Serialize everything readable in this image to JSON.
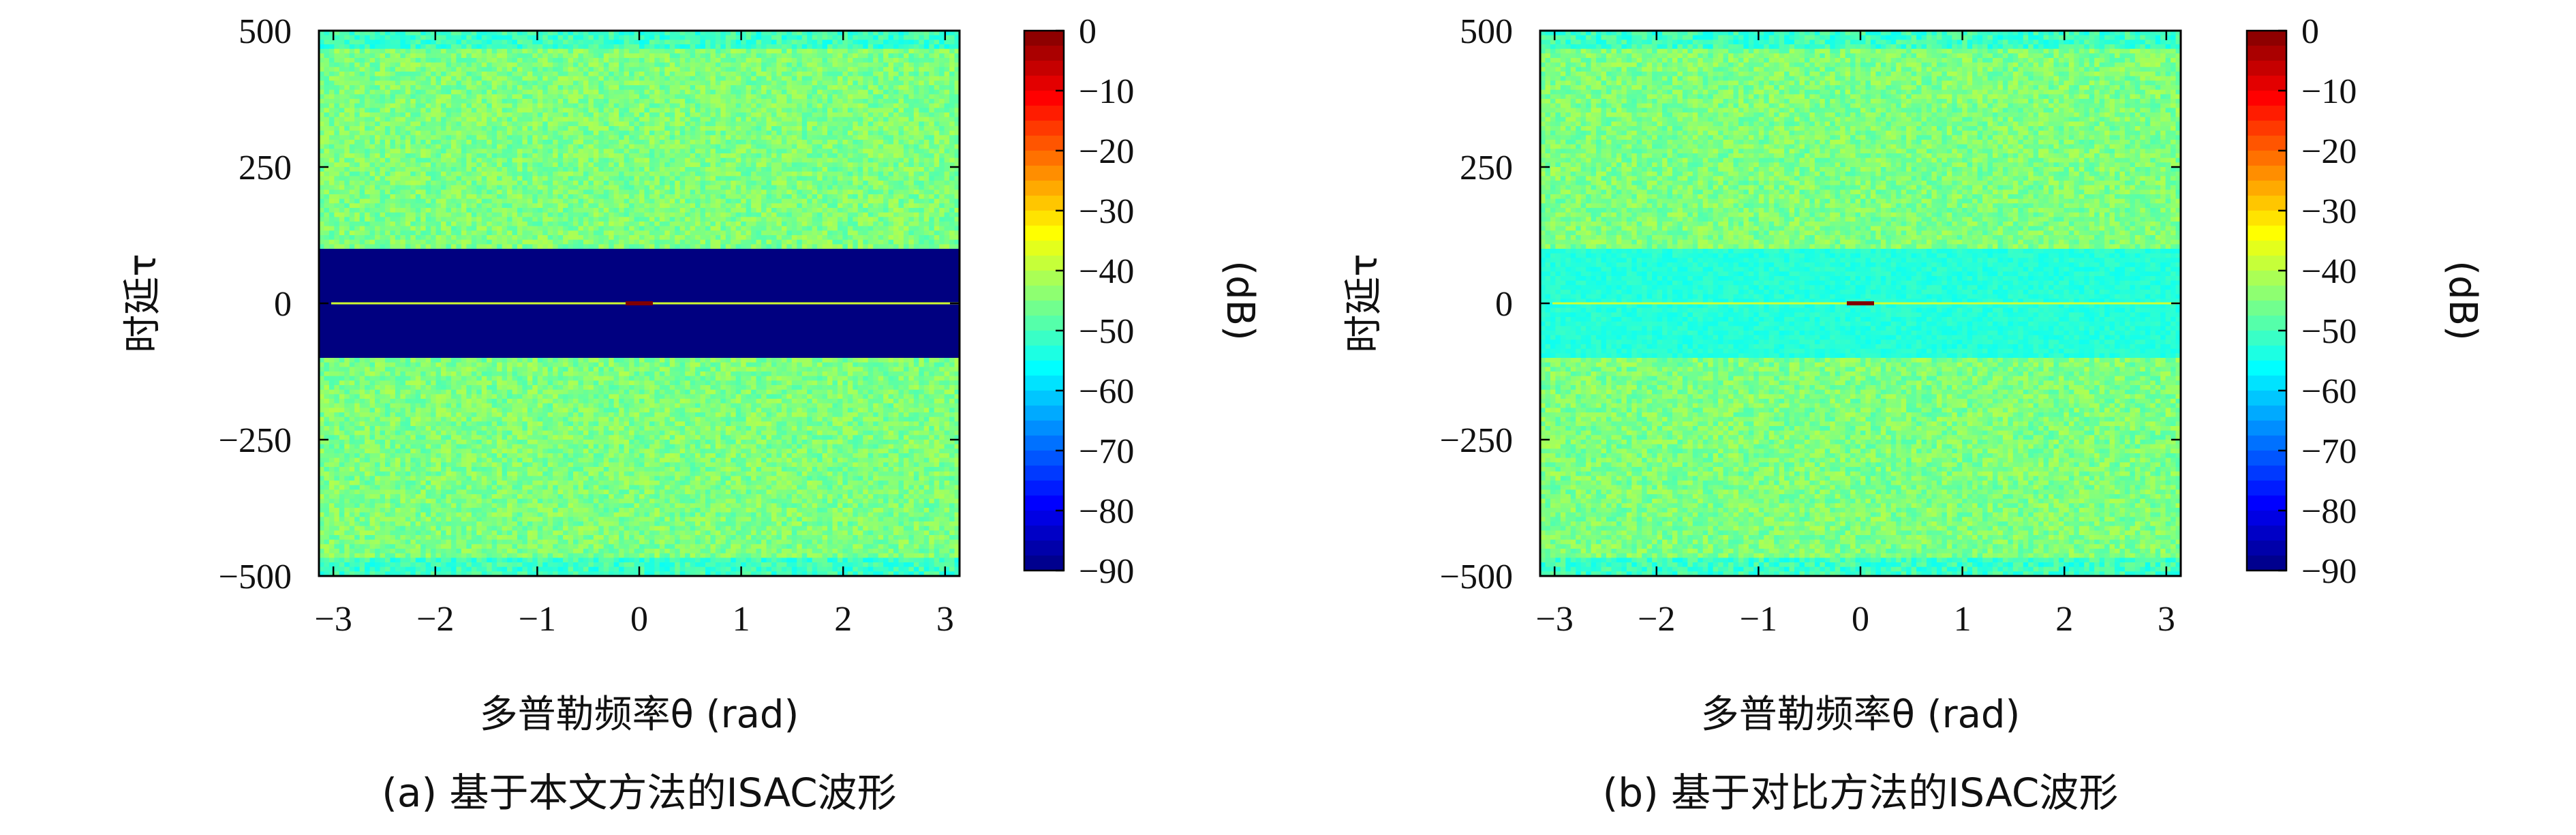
{
  "chart_data": [
    {
      "type": "heatmap",
      "caption": "(a) 基于本文方法的ISAC波形",
      "xlabel": "多普勒频率θ (rad)",
      "ylabel": "时延τ",
      "colorbar_label": "(dB)",
      "xlim": [
        -3.14159,
        3.14159
      ],
      "ylim": [
        -500,
        500
      ],
      "x_ticks": [
        "−3",
        "−2",
        "−1",
        "0",
        "1",
        "2",
        "3"
      ],
      "y_ticks": [
        "−500",
        "−250",
        "0",
        "250",
        "500"
      ],
      "colorbar_ticks": [
        "0",
        "−10",
        "−20",
        "−30",
        "−40",
        "−50",
        "−60",
        "−70",
        "−80",
        "−90"
      ],
      "clim": [
        -90,
        0
      ],
      "colormap": "jet",
      "background_level_db": -45,
      "suppressed_region": {
        "tau_range": [
          -100,
          100
        ],
        "level_db": -90
      },
      "mainlobe": {
        "tau": 0,
        "level_db": 0
      }
    },
    {
      "type": "heatmap",
      "caption": "(b) 基于对比方法的ISAC波形",
      "xlabel": "多普勒频率θ (rad)",
      "ylabel": "时延τ",
      "colorbar_label": "(dB)",
      "xlim": [
        -3.14159,
        3.14159
      ],
      "ylim": [
        -500,
        500
      ],
      "x_ticks": [
        "−3",
        "−2",
        "−1",
        "0",
        "1",
        "2",
        "3"
      ],
      "y_ticks": [
        "−500",
        "−250",
        "0",
        "250",
        "500"
      ],
      "colorbar_ticks": [
        "0",
        "−10",
        "−20",
        "−30",
        "−40",
        "−50",
        "−60",
        "−70",
        "−80",
        "−90"
      ],
      "clim": [
        -90,
        0
      ],
      "colormap": "jet",
      "background_level_db": -45,
      "suppressed_region": {
        "tau_range": [
          -100,
          100
        ],
        "level_db": -53
      },
      "mainlobe": {
        "tau": 0,
        "level_db": 0
      }
    }
  ]
}
